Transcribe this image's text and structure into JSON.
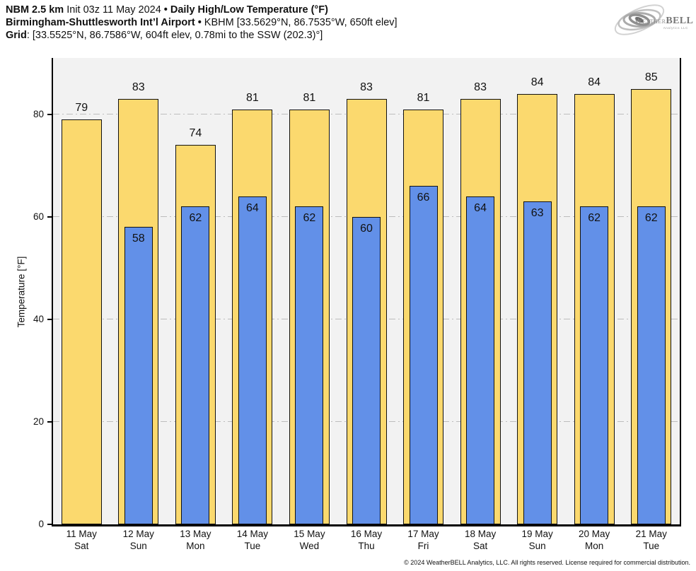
{
  "header": {
    "model": "NBM 2.5 km",
    "init": "Init 03z 11 May 2024",
    "separator": "•",
    "product": "Daily High/Low Temperature (°F)",
    "station": "Birmingham-Shuttlesworth Int’l Airport",
    "station_details": "KBHM [33.5629°N, 86.7535°W, 650ft elev]",
    "grid_label": "Grid",
    "grid_details": ": [33.5525°N, 86.7586°W, 604ft elev, 0.78mi to the SSW (202.3)°]"
  },
  "logo": {
    "weather": "Weather",
    "bell": "BELL",
    "subtitle": "Analytics LLC"
  },
  "footer": {
    "copyright": "© 2024 WeatherBELL Analytics, LLC. All rights reserved. License required for commercial distribution."
  },
  "chart_data": {
    "type": "bar",
    "title": "Daily High/Low Temperature (°F)",
    "ylabel": "Temperature [°F]",
    "categories": [
      "11 May",
      "12 May",
      "13 May",
      "14 May",
      "15 May",
      "16 May",
      "17 May",
      "18 May",
      "19 May",
      "20 May",
      "21 May"
    ],
    "day_labels": [
      "Sat",
      "Sun",
      "Mon",
      "Tue",
      "Wed",
      "Thu",
      "Fri",
      "Sat",
      "Sun",
      "Mon",
      "Tue"
    ],
    "series": [
      {
        "name": "High",
        "color": "#FBD96E",
        "values": [
          79,
          83,
          74,
          81,
          81,
          83,
          81,
          83,
          84,
          84,
          85
        ]
      },
      {
        "name": "Low",
        "color": "#6290E8",
        "values": [
          null,
          58,
          62,
          64,
          62,
          60,
          66,
          64,
          63,
          62,
          62
        ]
      }
    ],
    "yticks": [
      0,
      20,
      40,
      60,
      80
    ],
    "ylim": [
      0,
      91
    ],
    "grid": "horizontal dash-dot",
    "legend": "none",
    "plot_background": "#f2f2f2",
    "grid_color": "#bdbdbd"
  }
}
